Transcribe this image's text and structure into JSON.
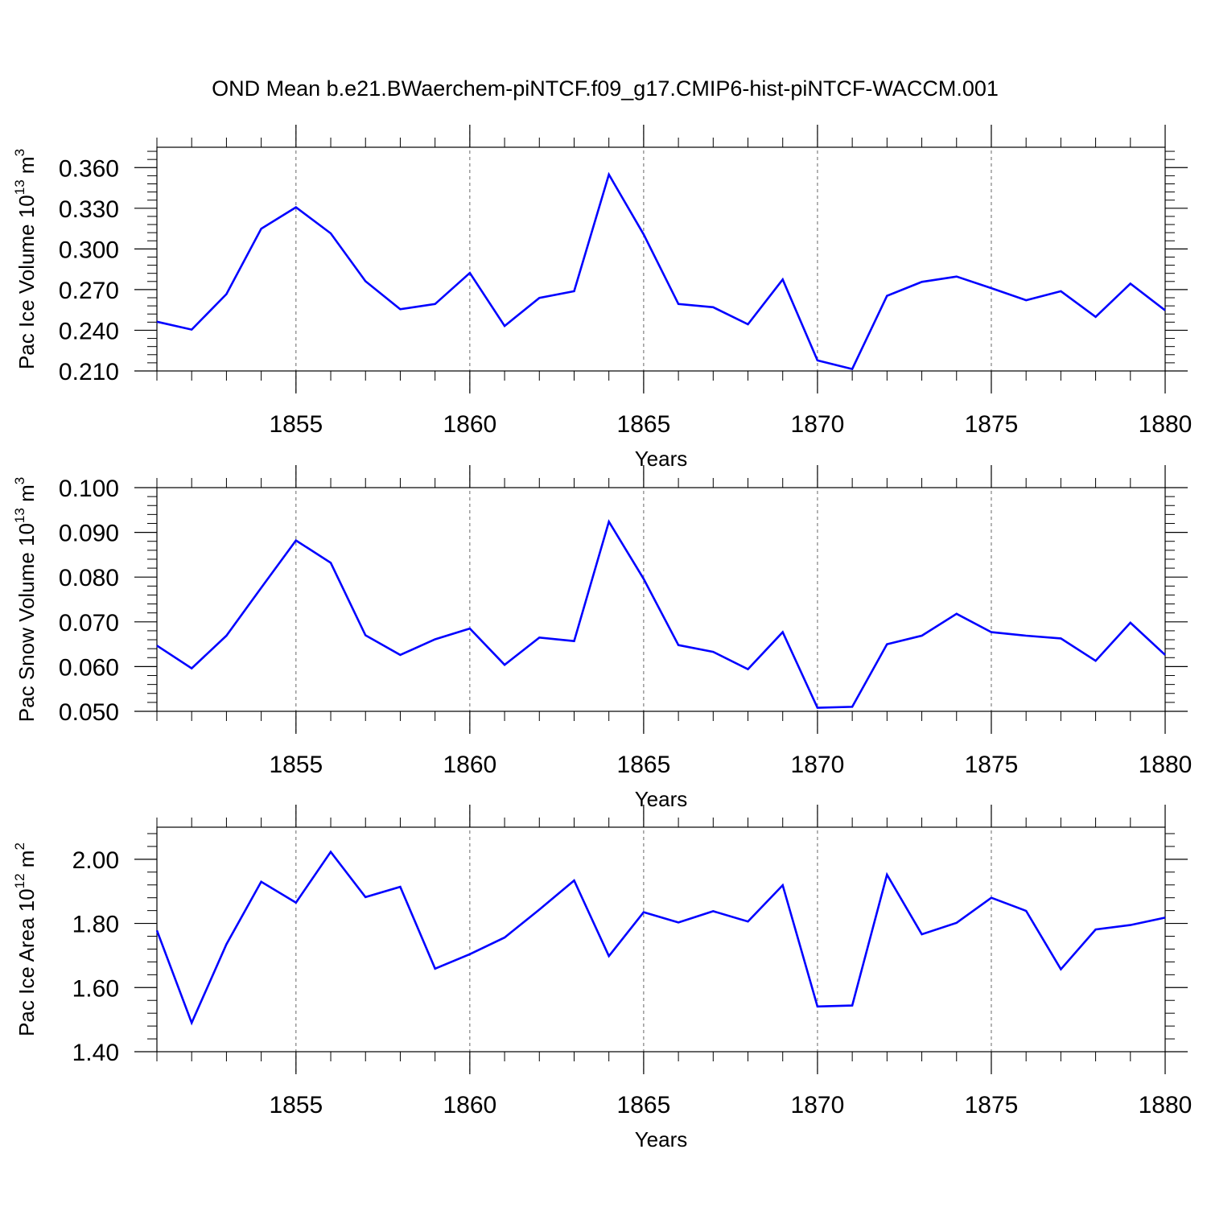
{
  "title": "OND Mean b.e21.BWaerchem-piNTCF.f09_g17.CMIP6-hist-piNTCF-WACCM.001",
  "line_color": "#0000ff",
  "grid_color": "#666666",
  "chart_data": [
    {
      "type": "line",
      "ylabel_main": "Pac Ice Volume 10",
      "ylabel_exp": "13",
      "ylabel_unit": " m",
      "ylabel_unit_exp": "3",
      "xlabel": "Years",
      "xlim": [
        1851,
        1880
      ],
      "ylim": [
        0.21,
        0.375
      ],
      "x_ticks": [
        1855,
        1860,
        1865,
        1870,
        1875,
        1880
      ],
      "x_tick_labels": [
        "1855",
        "1860",
        "1865",
        "1870",
        "1875",
        "1880"
      ],
      "y_ticks": [
        0.21,
        0.24,
        0.27,
        0.3,
        0.33,
        0.36
      ],
      "y_tick_labels": [
        "0.210",
        "0.240",
        "0.270",
        "0.300",
        "0.330",
        "0.360"
      ],
      "grid": "vertical dashed at major x ticks",
      "x": [
        1851,
        1852,
        1853,
        1854,
        1855,
        1856,
        1857,
        1858,
        1859,
        1860,
        1861,
        1862,
        1863,
        1864,
        1865,
        1866,
        1867,
        1868,
        1869,
        1870,
        1871,
        1872,
        1873,
        1874,
        1875,
        1876,
        1877,
        1878,
        1879,
        1880
      ],
      "values": [
        0.2463,
        0.2405,
        0.2667,
        0.3149,
        0.3307,
        0.3115,
        0.2762,
        0.2555,
        0.2594,
        0.2823,
        0.2432,
        0.2639,
        0.2688,
        0.3549,
        0.3107,
        0.2594,
        0.257,
        0.2444,
        0.2775,
        0.2178,
        0.2114,
        0.2654,
        0.2757,
        0.2796,
        0.2711,
        0.2622,
        0.2688,
        0.2499,
        0.2744,
        0.2547
      ]
    },
    {
      "type": "line",
      "ylabel_main": "Pac Snow Volume 10",
      "ylabel_exp": "13",
      "ylabel_unit": " m",
      "ylabel_unit_exp": "3",
      "xlabel": "Years",
      "xlim": [
        1851,
        1880
      ],
      "ylim": [
        0.05,
        0.1
      ],
      "x_ticks": [
        1855,
        1860,
        1865,
        1870,
        1875,
        1880
      ],
      "x_tick_labels": [
        "1855",
        "1860",
        "1865",
        "1870",
        "1875",
        "1880"
      ],
      "y_ticks": [
        0.05,
        0.06,
        0.07,
        0.08,
        0.09,
        0.1
      ],
      "y_tick_labels": [
        "0.050",
        "0.060",
        "0.070",
        "0.080",
        "0.090",
        "0.100"
      ],
      "grid": "vertical dashed at major x ticks",
      "x": [
        1851,
        1852,
        1853,
        1854,
        1855,
        1856,
        1857,
        1858,
        1859,
        1860,
        1861,
        1862,
        1863,
        1864,
        1865,
        1866,
        1867,
        1868,
        1869,
        1870,
        1871,
        1872,
        1873,
        1874,
        1875,
        1876,
        1877,
        1878,
        1879,
        1880
      ],
      "values": [
        0.0647,
        0.0596,
        0.0669,
        0.0776,
        0.0882,
        0.0832,
        0.067,
        0.0626,
        0.0661,
        0.0685,
        0.0604,
        0.0665,
        0.0657,
        0.0924,
        0.0796,
        0.0648,
        0.0633,
        0.0594,
        0.0677,
        0.0508,
        0.051,
        0.065,
        0.0669,
        0.0718,
        0.0677,
        0.0669,
        0.0663,
        0.0613,
        0.0698,
        0.0626
      ]
    },
    {
      "type": "line",
      "ylabel_main": "Pac Ice Area 10",
      "ylabel_exp": "12",
      "ylabel_unit": " m",
      "ylabel_unit_exp": "2",
      "xlabel": "Years",
      "xlim": [
        1851,
        1880
      ],
      "ylim": [
        1.4,
        2.1
      ],
      "x_ticks": [
        1855,
        1860,
        1865,
        1870,
        1875,
        1880
      ],
      "x_tick_labels": [
        "1855",
        "1860",
        "1865",
        "1870",
        "1875",
        "1880"
      ],
      "y_ticks": [
        1.4,
        1.6,
        1.8,
        2.0
      ],
      "y_tick_labels": [
        "1.40",
        "1.60",
        "1.80",
        "2.00"
      ],
      "grid": "vertical dashed at major x ticks",
      "x": [
        1851,
        1852,
        1853,
        1854,
        1855,
        1856,
        1857,
        1858,
        1859,
        1860,
        1861,
        1862,
        1863,
        1864,
        1865,
        1866,
        1867,
        1868,
        1869,
        1870,
        1871,
        1872,
        1873,
        1874,
        1875,
        1876,
        1877,
        1878,
        1879,
        1880
      ],
      "values": [
        1.778,
        1.49,
        1.735,
        1.93,
        1.865,
        2.023,
        1.882,
        1.914,
        1.659,
        1.704,
        1.756,
        1.843,
        1.934,
        1.698,
        1.835,
        1.803,
        1.838,
        1.806,
        1.919,
        1.541,
        1.544,
        1.952,
        1.766,
        1.802,
        1.88,
        1.839,
        1.657,
        1.781,
        1.795,
        1.818
      ]
    }
  ]
}
